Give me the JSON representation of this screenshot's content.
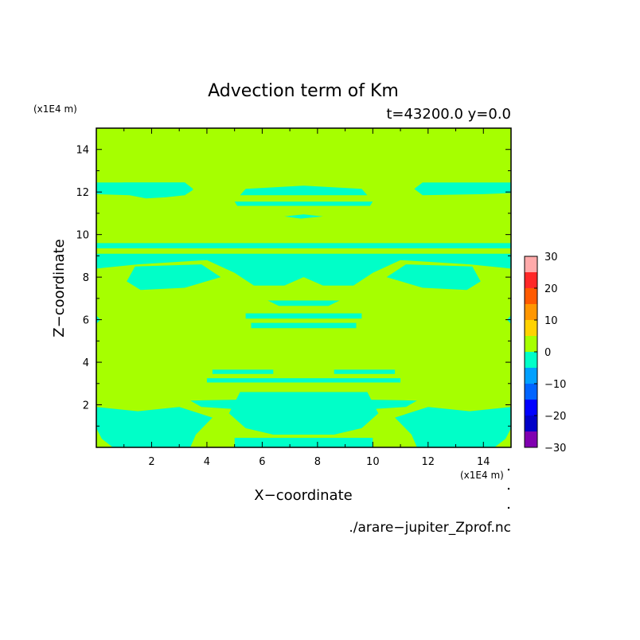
{
  "chart_data": {
    "type": "heatmap",
    "title": "Advection term of Km",
    "subtitle": "t=43200.0 y=0.0",
    "xlabel": "X−coordinate",
    "ylabel": "Z−coordinate",
    "x_unit": "(x1E4 m)",
    "y_unit": "(x1E4 m)",
    "source_file": "./arare−jupiter_Zprof.nc",
    "xlim": [
      0,
      15
    ],
    "ylim": [
      0,
      15
    ],
    "xticks": [
      2,
      4,
      6,
      8,
      10,
      12,
      14
    ],
    "yticks": [
      2,
      4,
      6,
      8,
      10,
      12,
      14
    ],
    "xtick_labels": [
      "2",
      "4",
      "6",
      "8",
      "10",
      "12",
      "14"
    ],
    "ytick_labels": [
      "2",
      "4",
      "6",
      "8",
      "10",
      "12",
      "14"
    ],
    "background_level": {
      "range": [
        0,
        5
      ],
      "color": "#a6ff00"
    },
    "colorbar": {
      "levels": [
        -30,
        -25,
        -20,
        -15,
        -10,
        -5,
        0,
        5,
        10,
        15,
        20,
        25,
        30
      ],
      "tick_labels": [
        "30",
        "20",
        "10",
        "0",
        "−10",
        "−20",
        "−30"
      ],
      "tick_values": [
        30,
        20,
        10,
        0,
        -10,
        -20,
        -30
      ],
      "colors": [
        "#8000b0",
        "#0000c8",
        "#0000ff",
        "#0064ff",
        "#00a0ff",
        "#00ffc8",
        "#a6ff00",
        "#ffd200",
        "#ff9600",
        "#ff5a00",
        "#ff2828",
        "#ffaaaa"
      ]
    },
    "negative_regions": {
      "range": [
        -5,
        0
      ],
      "color": "#00ffc8",
      "polygons": [
        [
          [
            0,
            12.45
          ],
          [
            3.2,
            12.45
          ],
          [
            3.5,
            12.15
          ],
          [
            3.2,
            11.85
          ],
          [
            1.0,
            11.9
          ],
          [
            0,
            11.95
          ]
        ],
        [
          [
            0,
            12.3
          ],
          [
            0,
            11.9
          ],
          [
            1.2,
            11.85
          ],
          [
            1.8,
            11.7
          ],
          [
            2.5,
            11.75
          ],
          [
            3.2,
            11.85
          ],
          [
            3.5,
            12.1
          ],
          [
            3.2,
            12.45
          ],
          [
            1.0,
            12.45
          ]
        ],
        [
          [
            5.2,
            11.85
          ],
          [
            9.8,
            11.85
          ],
          [
            9.6,
            12.15
          ],
          [
            7.5,
            12.3
          ],
          [
            5.4,
            12.15
          ]
        ],
        [
          [
            5.0,
            11.55
          ],
          [
            10.0,
            11.55
          ],
          [
            9.9,
            11.35
          ],
          [
            5.1,
            11.35
          ]
        ],
        [
          [
            6.8,
            10.85
          ],
          [
            7.4,
            10.75
          ],
          [
            8.2,
            10.85
          ],
          [
            7.5,
            10.95
          ]
        ],
        [
          [
            15,
            12.45
          ],
          [
            11.8,
            12.45
          ],
          [
            11.5,
            12.15
          ],
          [
            11.8,
            11.85
          ],
          [
            14,
            11.9
          ],
          [
            15,
            11.95
          ]
        ],
        [
          [
            0,
            9.6
          ],
          [
            15,
            9.6
          ],
          [
            15,
            9.35
          ],
          [
            0,
            9.35
          ]
        ],
        [
          [
            0,
            9.1
          ],
          [
            15,
            9.1
          ],
          [
            15,
            8.4
          ],
          [
            13.5,
            8.6
          ],
          [
            11,
            8.8
          ],
          [
            10,
            8.2
          ],
          [
            9.3,
            7.6
          ],
          [
            8.2,
            7.6
          ],
          [
            7.5,
            8.0
          ],
          [
            6.8,
            7.6
          ],
          [
            5.7,
            7.6
          ],
          [
            5.0,
            8.2
          ],
          [
            4.0,
            8.8
          ],
          [
            1.5,
            8.6
          ],
          [
            0,
            8.4
          ]
        ],
        [
          [
            1.1,
            7.8
          ],
          [
            1.4,
            8.5
          ],
          [
            3.8,
            8.6
          ],
          [
            4.5,
            8.0
          ],
          [
            3.2,
            7.5
          ],
          [
            1.6,
            7.4
          ]
        ],
        [
          [
            13.9,
            7.8
          ],
          [
            13.6,
            8.5
          ],
          [
            11.2,
            8.6
          ],
          [
            10.5,
            8.0
          ],
          [
            11.8,
            7.5
          ],
          [
            13.4,
            7.4
          ]
        ],
        [
          [
            6.2,
            6.9
          ],
          [
            8.8,
            6.9
          ],
          [
            8.4,
            6.65
          ],
          [
            6.6,
            6.65
          ]
        ],
        [
          [
            5.4,
            6.3
          ],
          [
            9.6,
            6.3
          ],
          [
            9.6,
            6.05
          ],
          [
            5.4,
            6.05
          ]
        ],
        [
          [
            5.6,
            5.85
          ],
          [
            9.4,
            5.85
          ],
          [
            9.4,
            5.6
          ],
          [
            5.6,
            5.6
          ]
        ],
        [
          [
            0,
            6.2
          ],
          [
            0.15,
            6.0
          ],
          [
            0,
            5.8
          ]
        ],
        [
          [
            15,
            6.2
          ],
          [
            14.85,
            6.0
          ],
          [
            15,
            5.8
          ]
        ],
        [
          [
            4.2,
            3.65
          ],
          [
            6.4,
            3.65
          ],
          [
            6.4,
            3.45
          ],
          [
            4.2,
            3.45
          ]
        ],
        [
          [
            8.6,
            3.65
          ],
          [
            10.8,
            3.65
          ],
          [
            10.8,
            3.45
          ],
          [
            8.6,
            3.45
          ]
        ],
        [
          [
            4.0,
            3.25
          ],
          [
            11.0,
            3.25
          ],
          [
            11.0,
            3.05
          ],
          [
            4.0,
            3.05
          ]
        ],
        [
          [
            5.2,
            2.6
          ],
          [
            9.8,
            2.6
          ],
          [
            10.2,
            1.6
          ],
          [
            9.6,
            0.9
          ],
          [
            8.6,
            0.6
          ],
          [
            6.4,
            0.6
          ],
          [
            5.4,
            0.9
          ],
          [
            4.8,
            1.6
          ]
        ],
        [
          [
            0,
            1.9
          ],
          [
            1.5,
            1.7
          ],
          [
            3.0,
            1.9
          ],
          [
            4.2,
            1.4
          ],
          [
            3.6,
            0.6
          ],
          [
            3.4,
            0.0
          ],
          [
            0.6,
            0.0
          ],
          [
            0.2,
            0.4
          ],
          [
            0,
            0.9
          ]
        ],
        [
          [
            15,
            1.9
          ],
          [
            13.5,
            1.7
          ],
          [
            12.0,
            1.9
          ],
          [
            10.8,
            1.4
          ],
          [
            11.4,
            0.6
          ],
          [
            11.6,
            0.0
          ],
          [
            14.4,
            0.0
          ],
          [
            14.8,
            0.4
          ],
          [
            15,
            0.9
          ]
        ],
        [
          [
            3.4,
            2.2
          ],
          [
            5.5,
            2.25
          ],
          [
            5.0,
            1.8
          ],
          [
            3.8,
            1.9
          ]
        ],
        [
          [
            11.6,
            2.2
          ],
          [
            9.5,
            2.25
          ],
          [
            10.0,
            1.8
          ],
          [
            11.2,
            1.9
          ]
        ],
        [
          [
            5.0,
            0.45
          ],
          [
            10.0,
            0.45
          ],
          [
            10.0,
            0.0
          ],
          [
            5.0,
            0.0
          ]
        ]
      ]
    }
  }
}
